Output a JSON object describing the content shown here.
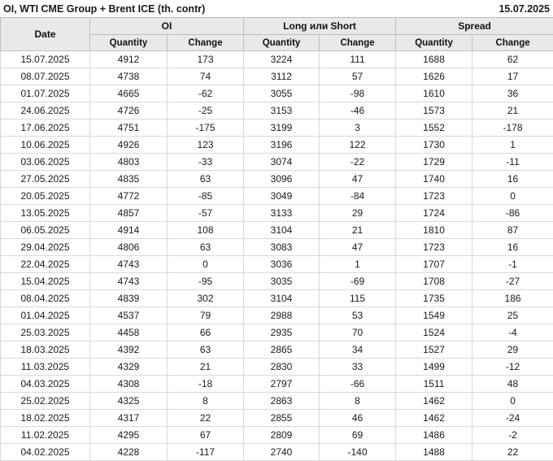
{
  "header": {
    "title": "OI, WTI CME Group + Brent ICE (th. contr)",
    "report_date": "15.07.2025"
  },
  "colors": {
    "positive_change": "#1e9b1e",
    "negative_change": "#d22b2b",
    "header_background": "#e9e9e9",
    "grid_border": "#d9d9d9",
    "header_border": "#bdbdbd",
    "text": "#1a1a1a"
  },
  "chart_data": {
    "type": "table",
    "title": "OI, WTI CME Group + Brent ICE (th. contr)",
    "as_of_date": "15.07.2025",
    "date_column_label": "Date",
    "column_groups": [
      {
        "label": "OI"
      },
      {
        "label": "Long или Short"
      },
      {
        "label": "Spread"
      }
    ],
    "sub_columns": [
      "Quantity",
      "Change"
    ],
    "rows": [
      {
        "date": "15.07.2025",
        "oi_quantity": "4912",
        "oi_change": "173",
        "oi_change_color": "green",
        "long_short_quantity": "3224",
        "long_short_change": "111",
        "long_short_change_color": "green",
        "spread_quantity": "1688",
        "spread_change": "62",
        "spread_change_color": "green"
      },
      {
        "date": "08.07.2025",
        "oi_quantity": "4738",
        "oi_change": "74",
        "oi_change_color": "green",
        "long_short_quantity": "3112",
        "long_short_change": "57",
        "long_short_change_color": "green",
        "spread_quantity": "1626",
        "spread_change": "17",
        "spread_change_color": "green"
      },
      {
        "date": "01.07.2025",
        "oi_quantity": "4665",
        "oi_change": "-62",
        "oi_change_color": "red",
        "long_short_quantity": "3055",
        "long_short_change": "-98",
        "long_short_change_color": "red",
        "spread_quantity": "1610",
        "spread_change": "36",
        "spread_change_color": "green"
      },
      {
        "date": "24.06.2025",
        "oi_quantity": "4726",
        "oi_change": "-25",
        "oi_change_color": "red",
        "long_short_quantity": "3153",
        "long_short_change": "-46",
        "long_short_change_color": "red",
        "spread_quantity": "1573",
        "spread_change": "21",
        "spread_change_color": "green"
      },
      {
        "date": "17.06.2025",
        "oi_quantity": "4751",
        "oi_change": "-175",
        "oi_change_color": "red",
        "long_short_quantity": "3199",
        "long_short_change": "3",
        "long_short_change_color": "green",
        "spread_quantity": "1552",
        "spread_change": "-178",
        "spread_change_color": "red"
      },
      {
        "date": "10.06.2025",
        "oi_quantity": "4926",
        "oi_change": "123",
        "oi_change_color": "green",
        "long_short_quantity": "3196",
        "long_short_change": "122",
        "long_short_change_color": "green",
        "spread_quantity": "1730",
        "spread_change": "1",
        "spread_change_color": "green"
      },
      {
        "date": "03.06.2025",
        "oi_quantity": "4803",
        "oi_change": "-33",
        "oi_change_color": "red",
        "long_short_quantity": "3074",
        "long_short_change": "-22",
        "long_short_change_color": "red",
        "spread_quantity": "1729",
        "spread_change": "-11",
        "spread_change_color": "red"
      },
      {
        "date": "27.05.2025",
        "oi_quantity": "4835",
        "oi_change": "63",
        "oi_change_color": "green",
        "long_short_quantity": "3096",
        "long_short_change": "47",
        "long_short_change_color": "green",
        "spread_quantity": "1740",
        "spread_change": "16",
        "spread_change_color": "green"
      },
      {
        "date": "20.05.2025",
        "oi_quantity": "4772",
        "oi_change": "-85",
        "oi_change_color": "red",
        "long_short_quantity": "3049",
        "long_short_change": "-84",
        "long_short_change_color": "red",
        "spread_quantity": "1723",
        "spread_change": "0",
        "spread_change_color": "red"
      },
      {
        "date": "13.05.2025",
        "oi_quantity": "4857",
        "oi_change": "-57",
        "oi_change_color": "red",
        "long_short_quantity": "3133",
        "long_short_change": "29",
        "long_short_change_color": "green",
        "spread_quantity": "1724",
        "spread_change": "-86",
        "spread_change_color": "red"
      },
      {
        "date": "06.05.2025",
        "oi_quantity": "4914",
        "oi_change": "108",
        "oi_change_color": "green",
        "long_short_quantity": "3104",
        "long_short_change": "21",
        "long_short_change_color": "green",
        "spread_quantity": "1810",
        "spread_change": "87",
        "spread_change_color": "green"
      },
      {
        "date": "29.04.2025",
        "oi_quantity": "4806",
        "oi_change": "63",
        "oi_change_color": "green",
        "long_short_quantity": "3083",
        "long_short_change": "47",
        "long_short_change_color": "green",
        "spread_quantity": "1723",
        "spread_change": "16",
        "spread_change_color": "green"
      },
      {
        "date": "22.04.2025",
        "oi_quantity": "4743",
        "oi_change": "0",
        "oi_change_color": "red",
        "long_short_quantity": "3036",
        "long_short_change": "1",
        "long_short_change_color": "green",
        "spread_quantity": "1707",
        "spread_change": "-1",
        "spread_change_color": "red"
      },
      {
        "date": "15.04.2025",
        "oi_quantity": "4743",
        "oi_change": "-95",
        "oi_change_color": "red",
        "long_short_quantity": "3035",
        "long_short_change": "-69",
        "long_short_change_color": "red",
        "spread_quantity": "1708",
        "spread_change": "-27",
        "spread_change_color": "red"
      },
      {
        "date": "08.04.2025",
        "oi_quantity": "4839",
        "oi_change": "302",
        "oi_change_color": "green",
        "long_short_quantity": "3104",
        "long_short_change": "115",
        "long_short_change_color": "green",
        "spread_quantity": "1735",
        "spread_change": "186",
        "spread_change_color": "green"
      },
      {
        "date": "01.04.2025",
        "oi_quantity": "4537",
        "oi_change": "79",
        "oi_change_color": "green",
        "long_short_quantity": "2988",
        "long_short_change": "53",
        "long_short_change_color": "green",
        "spread_quantity": "1549",
        "spread_change": "25",
        "spread_change_color": "green"
      },
      {
        "date": "25.03.2025",
        "oi_quantity": "4458",
        "oi_change": "66",
        "oi_change_color": "green",
        "long_short_quantity": "2935",
        "long_short_change": "70",
        "long_short_change_color": "green",
        "spread_quantity": "1524",
        "spread_change": "-4",
        "spread_change_color": "red"
      },
      {
        "date": "18.03.2025",
        "oi_quantity": "4392",
        "oi_change": "63",
        "oi_change_color": "green",
        "long_short_quantity": "2865",
        "long_short_change": "34",
        "long_short_change_color": "green",
        "spread_quantity": "1527",
        "spread_change": "29",
        "spread_change_color": "green"
      },
      {
        "date": "11.03.2025",
        "oi_quantity": "4329",
        "oi_change": "21",
        "oi_change_color": "green",
        "long_short_quantity": "2830",
        "long_short_change": "33",
        "long_short_change_color": "green",
        "spread_quantity": "1499",
        "spread_change": "-12",
        "spread_change_color": "red"
      },
      {
        "date": "04.03.2025",
        "oi_quantity": "4308",
        "oi_change": "-18",
        "oi_change_color": "red",
        "long_short_quantity": "2797",
        "long_short_change": "-66",
        "long_short_change_color": "red",
        "spread_quantity": "1511",
        "spread_change": "48",
        "spread_change_color": "green"
      },
      {
        "date": "25.02.2025",
        "oi_quantity": "4325",
        "oi_change": "8",
        "oi_change_color": "green",
        "long_short_quantity": "2863",
        "long_short_change": "8",
        "long_short_change_color": "green",
        "spread_quantity": "1462",
        "spread_change": "0",
        "spread_change_color": "green"
      },
      {
        "date": "18.02.2025",
        "oi_quantity": "4317",
        "oi_change": "22",
        "oi_change_color": "green",
        "long_short_quantity": "2855",
        "long_short_change": "46",
        "long_short_change_color": "green",
        "spread_quantity": "1462",
        "spread_change": "-24",
        "spread_change_color": "red"
      },
      {
        "date": "11.02.2025",
        "oi_quantity": "4295",
        "oi_change": "67",
        "oi_change_color": "green",
        "long_short_quantity": "2809",
        "long_short_change": "69",
        "long_short_change_color": "green",
        "spread_quantity": "1486",
        "spread_change": "-2",
        "spread_change_color": "red"
      },
      {
        "date": "04.02.2025",
        "oi_quantity": "4228",
        "oi_change": "-117",
        "oi_change_color": "red",
        "long_short_quantity": "2740",
        "long_short_change": "-140",
        "long_short_change_color": "red",
        "spread_quantity": "1488",
        "spread_change": "22",
        "spread_change_color": "green"
      }
    ]
  }
}
